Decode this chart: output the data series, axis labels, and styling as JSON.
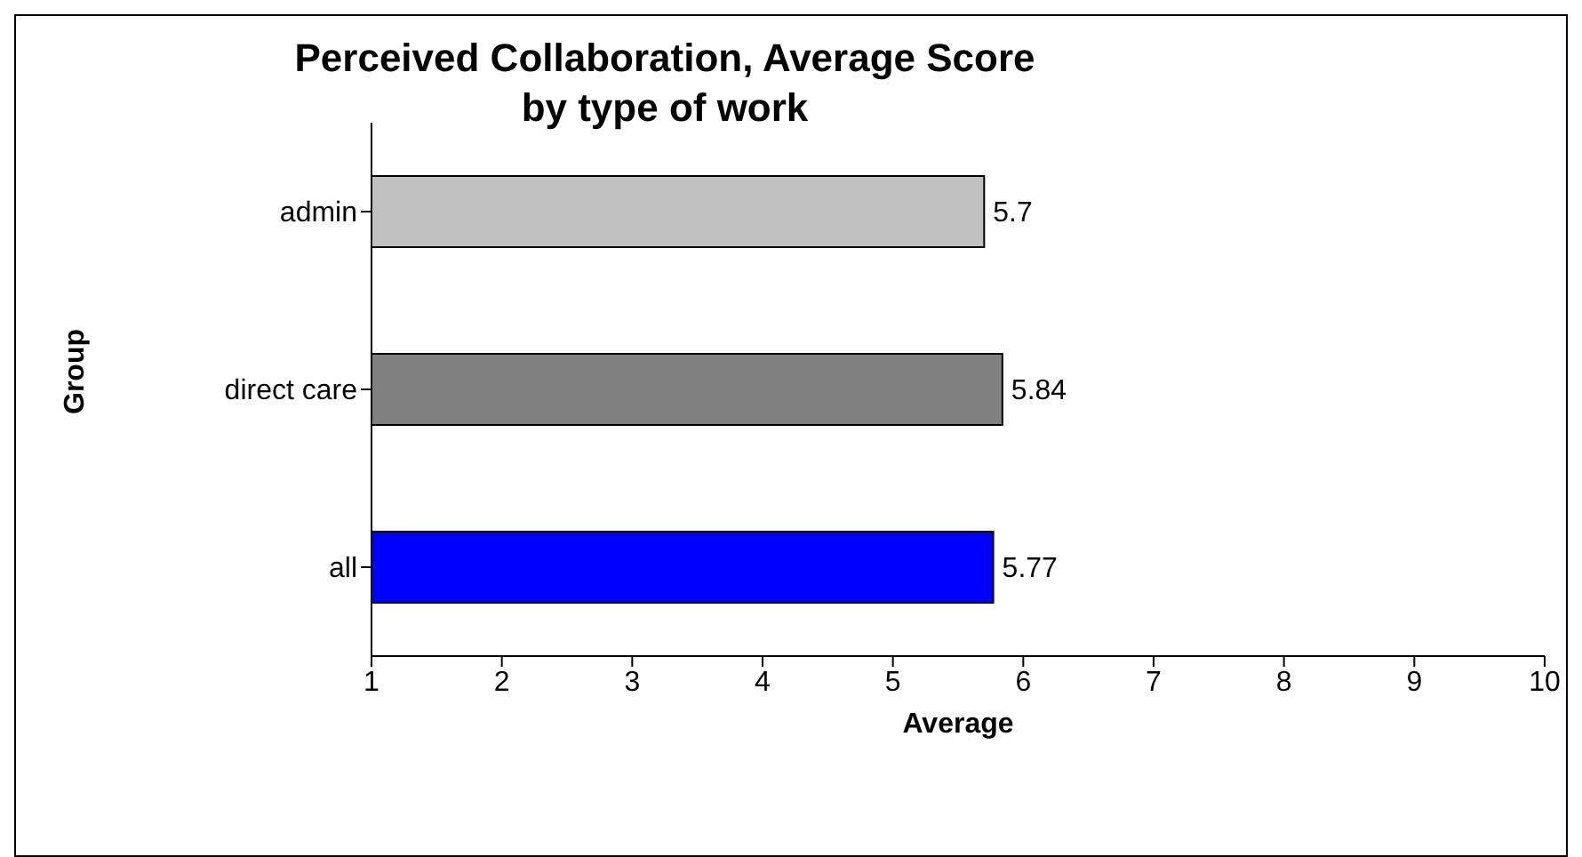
{
  "chart_data": {
    "type": "bar",
    "orientation": "horizontal",
    "title": "Perceived Collaboration, Average Score",
    "subtitle": "by type of work",
    "xlabel": "Average",
    "ylabel": "Group",
    "categories": [
      "admin",
      "direct care",
      "all"
    ],
    "values": [
      5.7,
      5.84,
      5.77
    ],
    "colors": [
      "#c0c0c0",
      "#808080",
      "#0000ff"
    ],
    "xlim": [
      1,
      10
    ],
    "xticks": [
      1,
      2,
      3,
      4,
      5,
      6,
      7,
      8,
      9,
      10
    ],
    "data_labels": true,
    "grid": false
  }
}
